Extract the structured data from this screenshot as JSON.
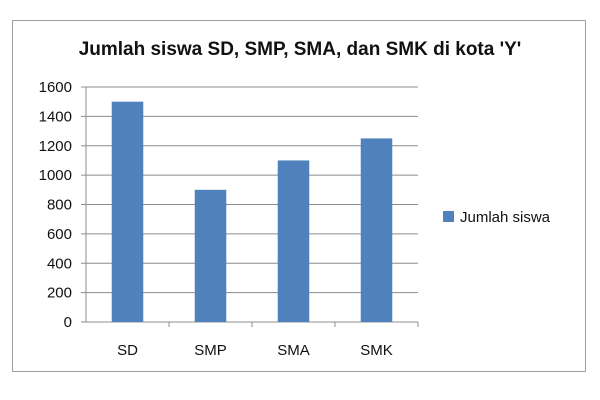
{
  "chart_data": {
    "type": "bar",
    "title": "Jumlah siswa SD, SMP, SMA, dan SMK di kota 'Y'",
    "xlabel": "",
    "ylabel": "",
    "categories": [
      "SD",
      "SMP",
      "SMA",
      "SMK"
    ],
    "series": [
      {
        "name": "Jumlah siswa",
        "values": [
          1500,
          900,
          1100,
          1250
        ],
        "color": "#4f81bd"
      }
    ],
    "ylim": [
      0,
      1600
    ],
    "yticks": [
      0,
      200,
      400,
      600,
      800,
      1000,
      1200,
      1400,
      1600
    ],
    "grid": true,
    "legend_position": "right"
  }
}
